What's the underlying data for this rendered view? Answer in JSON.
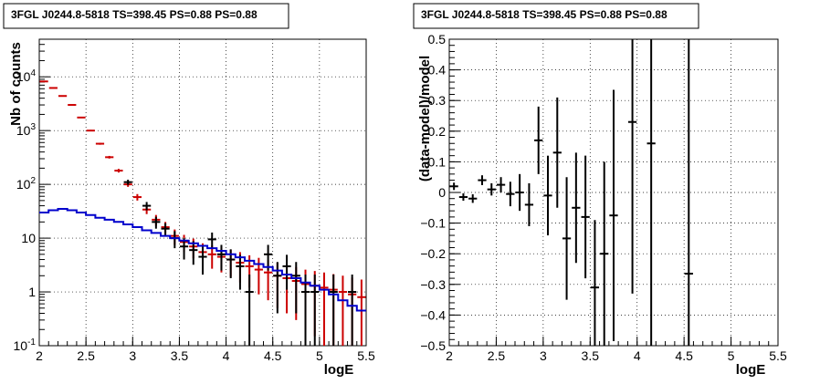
{
  "chart_data": [
    {
      "type": "scatter",
      "title": "3FGL J0244.8-5818 TS=398.45 PS=0.88 PS=0.88",
      "xlabel": "logE",
      "ylabel": "Nb of counts",
      "xlim": [
        2,
        5.5
      ],
      "ylim": [
        0.1,
        50000
      ],
      "yscale": "log",
      "grid": true,
      "x_ticks": [
        "2",
        "2.5",
        "3",
        "3.5",
        "4",
        "4.5",
        "5",
        "5.5"
      ],
      "y_ticks": [
        "10^-1",
        "1",
        "10",
        "10^2",
        "10^3",
        "10^4"
      ],
      "series": [
        {
          "color": "#cc0000",
          "style": "errorbar",
          "x": [
            2.05,
            2.15,
            2.25,
            2.35,
            2.45,
            2.55,
            2.65,
            2.75,
            2.85,
            2.95,
            3.05,
            3.15,
            3.25,
            3.35,
            3.45,
            3.55,
            3.65,
            3.75,
            3.85,
            3.95,
            4.05,
            4.15,
            4.25,
            4.35,
            4.45,
            4.55,
            4.65,
            4.75,
            4.85,
            4.95,
            5.05,
            5.15,
            5.25,
            5.35,
            5.45
          ],
          "y": [
            8200,
            6200,
            4400,
            3000,
            1750,
            1000,
            570,
            320,
            180,
            100,
            58,
            34,
            22,
            16,
            11,
            8.5,
            7,
            5.5,
            5,
            4.5,
            4,
            3.5,
            3,
            2.6,
            2.3,
            2,
            1.8,
            1.6,
            1.4,
            1.3,
            1.2,
            1.1,
            1,
            0.9,
            0.8
          ],
          "yerr": [
            100,
            80,
            65,
            55,
            42,
            32,
            24,
            18,
            14,
            10,
            8,
            6,
            5,
            4,
            3.5,
            3,
            2.8,
            2.5,
            2.3,
            2.2,
            2.1,
            2,
            1.8,
            1.7,
            1.6,
            1.5,
            1.4,
            1.3,
            1.2,
            1.15,
            1.1,
            1.05,
            1,
            0.95,
            0.9
          ]
        },
        {
          "color": "#000000",
          "style": "errorbar",
          "x": [
            2.95,
            3.15,
            3.25,
            3.35,
            3.45,
            3.55,
            3.65,
            3.75,
            3.85,
            3.95,
            4.05,
            4.15,
            4.25,
            4.45,
            4.55,
            4.65,
            4.75,
            4.85,
            4.95,
            5.15,
            5.35
          ],
          "y": [
            110,
            40,
            20,
            15,
            10,
            7,
            6,
            4.5,
            9.5,
            5,
            4,
            3,
            1,
            5,
            2,
            3,
            2,
            1,
            1,
            1,
            1
          ],
          "yerr": [
            12,
            7,
            5,
            4,
            3.5,
            3,
            2.8,
            2.4,
            3.2,
            2.5,
            2.2,
            1.9,
            1.1,
            2.5,
            1.6,
            1.9,
            1.6,
            1.1,
            1.1,
            1.1,
            1.1
          ]
        },
        {
          "color": "#0000cc",
          "style": "step",
          "x": [
            2.05,
            2.15,
            2.25,
            2.35,
            2.45,
            2.55,
            2.65,
            2.75,
            2.85,
            2.95,
            3.05,
            3.15,
            3.25,
            3.35,
            3.45,
            3.55,
            3.65,
            3.75,
            3.85,
            3.95,
            4.05,
            4.15,
            4.25,
            4.35,
            4.45,
            4.55,
            4.65,
            4.75,
            4.85,
            4.95,
            5.05,
            5.15,
            5.25,
            5.35,
            5.45
          ],
          "y": [
            30,
            33,
            35,
            33,
            30,
            27,
            24,
            22,
            20,
            18,
            16,
            14,
            12.5,
            11,
            10,
            9,
            8,
            7.2,
            6.5,
            5.8,
            5,
            4.4,
            3.8,
            3.3,
            2.9,
            2.5,
            2.1,
            1.8,
            1.5,
            1.3,
            1.1,
            0.9,
            0.7,
            0.55,
            0.45
          ]
        }
      ]
    },
    {
      "type": "scatter",
      "title": "3FGL J0244.8-5818 TS=398.45 PS=0.88 PS=0.88",
      "xlabel": "logE",
      "ylabel": "(data-model)/model",
      "xlim": [
        2,
        5.5
      ],
      "ylim": [
        -0.5,
        0.5
      ],
      "grid": true,
      "x_ticks": [
        "2",
        "2.5",
        "3",
        "3.5",
        "4",
        "4.5",
        "5",
        "5.5"
      ],
      "y_ticks": [
        "−0.5",
        "−0.4",
        "−0.3",
        "−0.2",
        "−0.1",
        "0",
        "0.1",
        "0.2",
        "0.3",
        "0.4",
        "0.5"
      ],
      "series": [
        {
          "color": "#000000",
          "style": "errorbar",
          "x": [
            2.05,
            2.15,
            2.25,
            2.35,
            2.45,
            2.55,
            2.65,
            2.75,
            2.85,
            2.95,
            3.05,
            3.15,
            3.25,
            3.35,
            3.45,
            3.55,
            3.65,
            3.75,
            3.95,
            4.15,
            4.55
          ],
          "y": [
            0.02,
            -0.015,
            -0.02,
            0.04,
            0.01,
            0.025,
            -0.005,
            0.0,
            -0.04,
            0.17,
            -0.01,
            0.13,
            -0.15,
            -0.05,
            -0.08,
            -0.31,
            -0.2,
            -0.075,
            0.23,
            0.16,
            -0.265
          ],
          "yerr": [
            0.012,
            0.012,
            0.014,
            0.016,
            0.02,
            0.025,
            0.04,
            0.06,
            0.07,
            0.11,
            0.13,
            0.18,
            0.2,
            0.18,
            0.2,
            0.22,
            0.3,
            0.41,
            0.56,
            0.9,
            0.9
          ]
        }
      ]
    }
  ]
}
